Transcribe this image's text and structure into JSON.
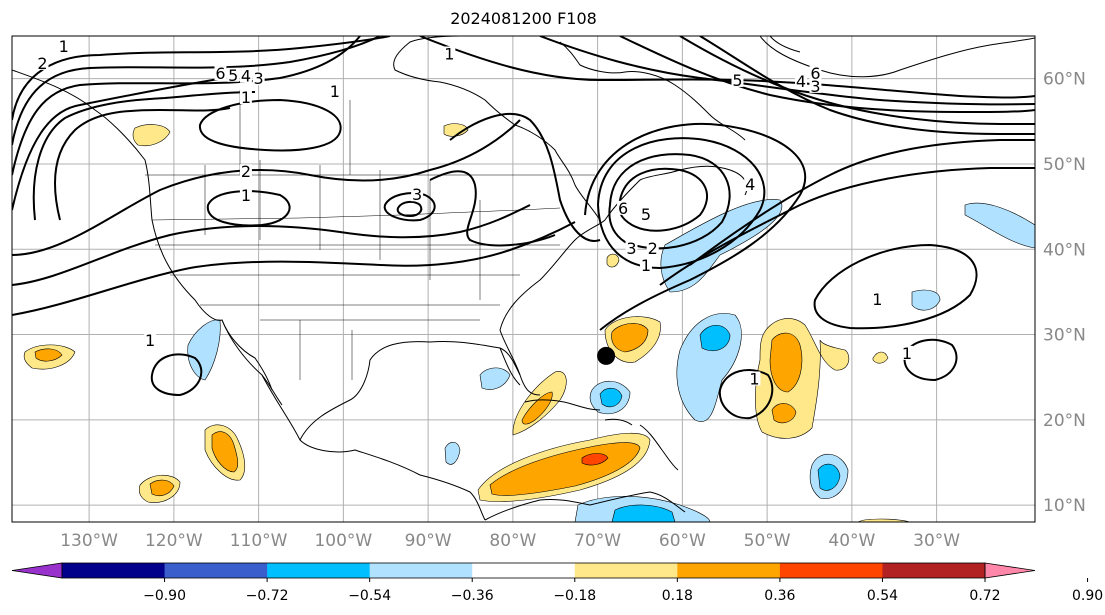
{
  "title": "2024081200 F108",
  "map": {
    "lat_ticks": [
      {
        "value": 60,
        "label": "60°N"
      },
      {
        "value": 50,
        "label": "50°N"
      },
      {
        "value": 40,
        "label": "40°N"
      },
      {
        "value": 30,
        "label": "30°N"
      },
      {
        "value": 20,
        "label": "20°N"
      },
      {
        "value": 10,
        "label": "10°N"
      }
    ],
    "lon_ticks": [
      {
        "value": -130,
        "label": "130°W"
      },
      {
        "value": -120,
        "label": "120°W"
      },
      {
        "value": -110,
        "label": "110°W"
      },
      {
        "value": -100,
        "label": "100°W"
      },
      {
        "value": -90,
        "label": "90°W"
      },
      {
        "value": -80,
        "label": "80°W"
      },
      {
        "value": -70,
        "label": "70°W"
      },
      {
        "value": -60,
        "label": "60°W"
      },
      {
        "value": -50,
        "label": "50°W"
      },
      {
        "value": -40,
        "label": "40°W"
      },
      {
        "value": -30,
        "label": "30°W"
      }
    ],
    "grid": true,
    "contour_labels": [
      {
        "text": "2",
        "lon": -135.5,
        "lat": 61.5
      },
      {
        "text": "1",
        "lon": -133,
        "lat": 63.5
      },
      {
        "text": "6",
        "lon": -114.5,
        "lat": 60.3
      },
      {
        "text": "5",
        "lon": -113,
        "lat": 60.1
      },
      {
        "text": "4",
        "lon": -111.5,
        "lat": 60.0
      },
      {
        "text": "3",
        "lon": -110,
        "lat": 59.7
      },
      {
        "text": "1",
        "lon": -111.5,
        "lat": 57.5
      },
      {
        "text": "1",
        "lon": -101,
        "lat": 58.2
      },
      {
        "text": "2",
        "lon": -111.5,
        "lat": 48.8
      },
      {
        "text": "1",
        "lon": -111.5,
        "lat": 46.0
      },
      {
        "text": "3",
        "lon": -91.3,
        "lat": 46.1
      },
      {
        "text": "1",
        "lon": -87.5,
        "lat": 62.6
      },
      {
        "text": "5",
        "lon": -53.5,
        "lat": 59.5
      },
      {
        "text": "6",
        "lon": -44.3,
        "lat": 60.3
      },
      {
        "text": "4",
        "lon": -46.0,
        "lat": 59.4
      },
      {
        "text": "3",
        "lon": -44.3,
        "lat": 58.8
      },
      {
        "text": "6",
        "lon": -67.0,
        "lat": 44.5
      },
      {
        "text": "5",
        "lon": -64.3,
        "lat": 43.8
      },
      {
        "text": "4",
        "lon": -52.0,
        "lat": 47.3
      },
      {
        "text": "3",
        "lon": -66.0,
        "lat": 39.8
      },
      {
        "text": "2",
        "lon": -63.5,
        "lat": 39.8
      },
      {
        "text": "1",
        "lon": -64.3,
        "lat": 37.8
      },
      {
        "text": "1",
        "lon": -37.0,
        "lat": 33.8
      },
      {
        "text": "1",
        "lon": -122.8,
        "lat": 29.0
      },
      {
        "text": "1",
        "lon": -51.5,
        "lat": 24.5
      },
      {
        "text": "1",
        "lon": -33.5,
        "lat": 27.5
      }
    ],
    "marker": {
      "lon": -69,
      "lat": 27.5,
      "color": "#000000"
    }
  },
  "colorbar": {
    "colors": [
      "#9932cc",
      "#00008b",
      "#3a5fcd",
      "#00bfff",
      "#b0e2ff",
      "#ffffff",
      "#ffe88a",
      "#ffa500",
      "#ff4500",
      "#b22222",
      "#ff88aa"
    ],
    "tick_labels": [
      "−0.90",
      "−0.72",
      "−0.54",
      "−0.36",
      "−0.18",
      "0.18",
      "0.36",
      "0.54",
      "0.72",
      "0.90"
    ]
  }
}
